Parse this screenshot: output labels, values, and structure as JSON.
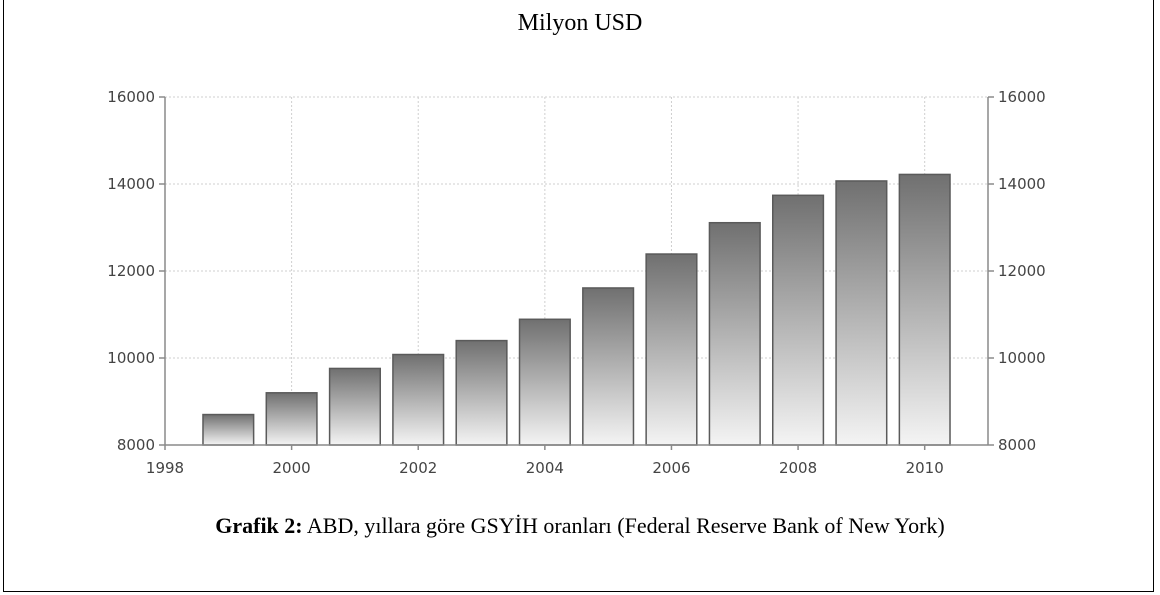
{
  "header": {
    "unit_title": "Milyon USD"
  },
  "caption": {
    "label": "Grafik 2:",
    "text": " ABD,  yıllara göre GSYİH  oranları (Federal Reserve Bank of New York)"
  },
  "chart_data": {
    "type": "bar",
    "title": "Milyon USD",
    "x": [
      1999,
      2000,
      2001,
      2002,
      2003,
      2004,
      2005,
      2006,
      2007,
      2008,
      2009,
      2010
    ],
    "values": [
      8700,
      9200,
      9760,
      10080,
      10400,
      10890,
      11610,
      12390,
      13110,
      13740,
      14070,
      14220
    ],
    "xlim": [
      1998,
      2011
    ],
    "ylim": [
      8000,
      16000
    ],
    "xticks": [
      1998,
      2000,
      2002,
      2004,
      2006,
      2008,
      2010
    ],
    "yticks": [
      8000,
      10000,
      12000,
      14000,
      16000
    ],
    "y_axis_right": true,
    "grid": true,
    "colors": {
      "bar_top": "#707070",
      "bar_bottom": "#f4f4f4",
      "bar_edge": "#5a5a5a",
      "grid": "#cfcfcf",
      "axis": "#8a8a8a"
    }
  }
}
